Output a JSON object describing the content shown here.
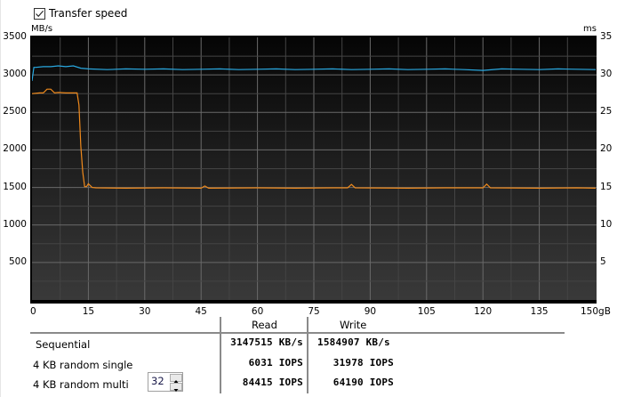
{
  "options": {
    "transfer_speed_label": "Transfer speed",
    "transfer_speed_checked": true
  },
  "chart_data": {
    "type": "line",
    "title": "",
    "xlabel": "gB",
    "ylabel": "MB/s",
    "ylabel_right": "ms",
    "xlim": [
      0,
      150
    ],
    "ylim": [
      0,
      3500
    ],
    "ylim_right": [
      0,
      35
    ],
    "x_ticks": [
      "0",
      "15",
      "30",
      "45",
      "60",
      "75",
      "90",
      "105",
      "120",
      "135",
      "150gB"
    ],
    "y_ticks_left": [
      "3500",
      "3000",
      "2500",
      "2000",
      "1500",
      "1000",
      "500"
    ],
    "y_ticks_right": [
      "35",
      "30",
      "25",
      "20",
      "15",
      "10",
      "5"
    ],
    "grid": true,
    "colors": {
      "read": "#29a8e0",
      "write": "#f08a1c",
      "plot_bg_top": "#050505",
      "plot_bg_bottom": "#3a3a3a",
      "grid": "#5a5a5a"
    },
    "series": [
      {
        "name": "Read",
        "x": [
          0,
          0.5,
          1,
          3,
          5,
          7,
          9,
          11,
          13,
          15,
          20,
          25,
          30,
          35,
          40,
          45,
          50,
          55,
          60,
          65,
          70,
          75,
          80,
          85,
          90,
          95,
          100,
          105,
          110,
          115,
          120,
          125,
          130,
          135,
          140,
          145,
          150
        ],
        "values": [
          2920,
          3100,
          3100,
          3110,
          3110,
          3120,
          3110,
          3120,
          3090,
          3080,
          3070,
          3080,
          3075,
          3080,
          3070,
          3075,
          3080,
          3070,
          3075,
          3080,
          3070,
          3075,
          3080,
          3070,
          3075,
          3080,
          3070,
          3075,
          3080,
          3070,
          3060,
          3080,
          3075,
          3070,
          3080,
          3075,
          3070
        ]
      },
      {
        "name": "Write",
        "x": [
          0,
          2,
          3,
          4,
          5,
          6,
          7,
          9,
          11,
          12,
          12.5,
          13,
          13.5,
          14,
          14.5,
          15,
          16,
          17,
          25,
          35,
          45,
          46,
          47,
          60,
          70,
          80,
          84,
          85,
          86,
          100,
          110,
          120,
          121,
          122,
          135,
          145,
          150
        ],
        "values": [
          2750,
          2760,
          2760,
          2810,
          2810,
          2760,
          2765,
          2760,
          2760,
          2760,
          2600,
          2050,
          1700,
          1510,
          1510,
          1550,
          1500,
          1495,
          1490,
          1495,
          1490,
          1520,
          1490,
          1495,
          1490,
          1495,
          1495,
          1540,
          1495,
          1490,
          1495,
          1495,
          1545,
          1495,
          1490,
          1495,
          1490
        ]
      }
    ]
  },
  "results": {
    "columns": [
      "Read",
      "Write"
    ],
    "rows": [
      {
        "label": "Sequential",
        "read": "3147515 KB/s",
        "write": "1584907 KB/s"
      },
      {
        "label": "4 KB random single",
        "read": "6031 IOPS",
        "write": "31978 IOPS"
      },
      {
        "label": "4 KB random multi",
        "read": "84415 IOPS",
        "write": "64190 IOPS"
      }
    ],
    "queue_depth": "32"
  }
}
